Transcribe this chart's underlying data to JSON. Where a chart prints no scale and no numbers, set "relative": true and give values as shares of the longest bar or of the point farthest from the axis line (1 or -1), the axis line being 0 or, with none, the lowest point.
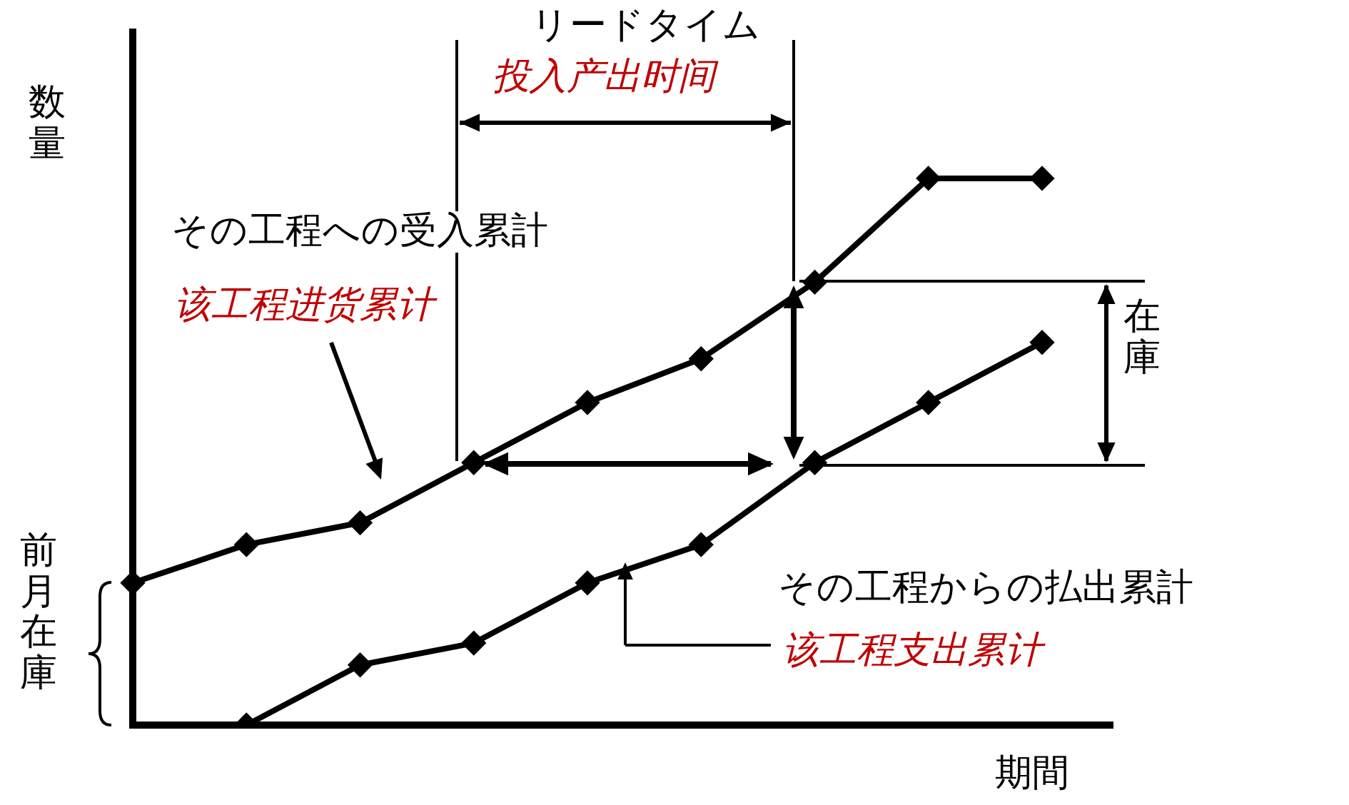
{
  "chart_data": {
    "type": "line",
    "relative": true,
    "xlabel": "期間",
    "ylabel": "数量",
    "categories": [
      null,
      null,
      null,
      null,
      null,
      null,
      null,
      null,
      null
    ],
    "series": [
      {
        "color": "#000000",
        "values": [
          0.26,
          0.33,
          0.37,
          0.48,
          0.59,
          0.67,
          0.81,
          1,
          1
        ]
      },
      {
        "color": "#000000",
        "values": [
          null,
          0,
          0.11,
          0.15,
          0.26,
          0.33,
          0.48,
          0.59,
          0.7
        ]
      }
    ],
    "annotations": [
      "リードタイム",
      "投入产出时间",
      "その工程への受入累計",
      "该工程进货累计",
      "その工程からの払出累計",
      "该工程支出累计",
      "在庫",
      "前月在庫"
    ],
    "marker": "diamond",
    "line_style": "solid",
    "legend": false
  }
}
